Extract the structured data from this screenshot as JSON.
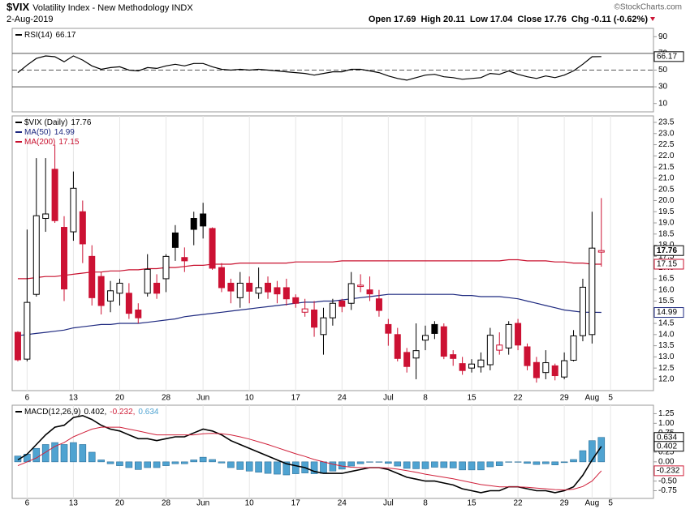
{
  "header": {
    "symbol": "$VIX",
    "name": "Volatility Index - New Methodology INDX",
    "copyright": "©StockCharts.com",
    "date": "2-Aug-2019",
    "quote": [
      {
        "label": "Open",
        "value": 17.69
      },
      {
        "label": "High",
        "value": 20.11
      },
      {
        "label": "Low",
        "value": 17.04
      },
      {
        "label": "Close",
        "value": 17.76
      },
      {
        "label": "Chg",
        "value": "-0.11 (-0.62%)"
      }
    ]
  },
  "chart_data": [
    {
      "type": "line",
      "xlim": [
        -0.61,
        68.63
      ],
      "ylim": [
        0,
        100
      ],
      "yticks": [
        10,
        30,
        50,
        70,
        90
      ],
      "reference_lines": [
        {
          "value": 70,
          "style": "solid"
        },
        {
          "value": 50,
          "style": "dashed"
        },
        {
          "value": 30,
          "style": "solid"
        }
      ],
      "series": [
        {
          "name": "RSI(14)",
          "color": "#000000",
          "last": 66.17,
          "values": [
            47,
            56,
            64,
            67,
            66,
            60,
            67,
            62,
            55,
            51,
            53,
            54,
            50,
            49,
            53,
            52,
            55,
            57,
            55,
            58,
            58,
            54,
            51,
            50,
            51,
            50,
            51,
            50,
            49,
            48,
            47,
            46,
            44,
            46,
            48,
            48,
            51,
            51,
            49,
            47,
            43,
            40,
            38,
            41,
            44,
            45,
            42,
            41,
            39,
            40,
            41,
            46,
            45,
            49,
            45,
            42,
            40,
            43,
            41,
            44,
            49,
            57,
            66,
            66.17
          ]
        }
      ]
    },
    {
      "type": "candlestick",
      "name": "$VIX (Daily)",
      "last": 17.76,
      "colors": {
        "up": "#000000",
        "down": "#cc1133"
      },
      "xlim": [
        -0.61,
        68.63
      ],
      "ylim": [
        11.49,
        23.79
      ],
      "yticks": [
        {
          "value": 12,
          "label": "12.0"
        },
        12.5,
        {
          "value": 13,
          "label": "13.0"
        },
        13.5,
        {
          "value": 14,
          "label": "14.0"
        },
        14.5,
        {
          "value": 15,
          "label": "15.0"
        },
        15.5,
        {
          "value": 16,
          "label": "16.0"
        },
        16.5,
        {
          "value": 17,
          "label": "17.0"
        },
        17.5,
        {
          "value": 18,
          "label": "18.0"
        },
        18.5,
        {
          "value": 19,
          "label": "19.0"
        },
        19.5,
        {
          "value": 20,
          "label": "20.0"
        },
        20.5,
        {
          "value": 21,
          "label": "21.0"
        },
        21.5,
        {
          "value": 22,
          "label": "22.0"
        },
        22.5,
        {
          "value": 23,
          "label": "23.0"
        },
        23.5
      ],
      "xticks": [
        {
          "value": 1,
          "label": "6"
        },
        {
          "value": 6,
          "label": "13"
        },
        {
          "value": 11,
          "label": "20"
        },
        {
          "value": 16,
          "label": "28"
        },
        {
          "value": 20,
          "label": "Jun"
        },
        {
          "value": 25,
          "label": "10"
        },
        {
          "value": 30,
          "label": "17"
        },
        {
          "value": 35,
          "label": "24"
        },
        {
          "value": 40,
          "label": "Jul"
        },
        {
          "value": 44,
          "label": "8"
        },
        {
          "value": 49,
          "label": "15"
        },
        {
          "value": 54,
          "label": "22"
        },
        {
          "value": 59,
          "label": "29"
        },
        {
          "value": 62,
          "label": "Aug"
        },
        {
          "value": 64,
          "label": "5"
        }
      ],
      "ohlc": {
        "open": [
          14.1,
          12.9,
          15.8,
          19.2,
          21.4,
          18.8,
          18.6,
          19.5,
          17.5,
          16.6,
          15.5,
          15.85,
          15.85,
          15.1,
          15.85,
          16.3,
          16.5,
          18.55,
          17.45,
          19.2,
          19.4,
          18.75,
          17.0,
          16.3,
          15.65,
          16.3,
          15.85,
          16.3,
          16.1,
          16.1,
          15.65,
          15.0,
          15.1,
          14.0,
          14.75,
          15.5,
          15.4,
          16.15,
          16.0,
          15.6,
          14.45,
          14.0,
          13.2,
          12.95,
          13.75,
          14.45,
          14.35,
          13.1,
          12.7,
          12.5,
          12.55,
          12.65,
          13.3,
          13.4,
          14.5,
          13.45,
          12.75,
          12.3,
          12.6,
          12.1,
          12.85,
          13.95,
          14.0,
          17.69
        ],
        "high": [
          14.15,
          18.7,
          21.9,
          21.9,
          22.5,
          19.3,
          21.3,
          20.0,
          18.0,
          16.8,
          16.4,
          16.5,
          16.3,
          15.4,
          17.6,
          16.7,
          17.6,
          18.9,
          17.9,
          19.5,
          19.9,
          18.8,
          17.2,
          16.5,
          16.8,
          16.6,
          17.0,
          16.6,
          16.4,
          16.5,
          15.8,
          15.6,
          15.5,
          15.2,
          15.6,
          15.6,
          16.8,
          16.7,
          16.6,
          16.0,
          14.7,
          14.3,
          13.4,
          14.5,
          14.4,
          14.6,
          14.5,
          13.3,
          13.0,
          12.9,
          13.2,
          14.3,
          14.1,
          14.6,
          14.7,
          13.6,
          13.0,
          13.3,
          12.7,
          13.2,
          14.2,
          16.5,
          19.5,
          20.11
        ],
        "low": [
          12.8,
          12.8,
          15.7,
          18.6,
          19.0,
          15.5,
          18.2,
          17.2,
          15.3,
          14.9,
          15.0,
          15.3,
          14.7,
          14.5,
          15.7,
          15.6,
          15.9,
          17.3,
          16.8,
          18.0,
          18.3,
          16.9,
          15.9,
          15.4,
          15.2,
          15.4,
          15.6,
          15.6,
          15.4,
          15.3,
          15.2,
          14.8,
          13.9,
          13.1,
          14.4,
          15.0,
          15.1,
          15.9,
          15.5,
          14.8,
          13.5,
          12.8,
          12.3,
          12.0,
          13.3,
          13.8,
          12.9,
          12.6,
          12.2,
          12.3,
          12.3,
          12.4,
          13.1,
          13.1,
          13.3,
          12.4,
          11.85,
          12.0,
          11.95,
          12.0,
          12.8,
          13.7,
          13.6,
          17.04
        ],
        "close": [
          12.87,
          15.44,
          19.32,
          19.4,
          19.1,
          16.04,
          20.55,
          18.06,
          15.65,
          15.3,
          15.96,
          16.3,
          14.95,
          14.75,
          16.92,
          15.85,
          17.5,
          17.9,
          17.3,
          18.71,
          18.86,
          16.97,
          16.1,
          15.95,
          16.3,
          15.94,
          16.1,
          15.91,
          15.82,
          15.6,
          15.4,
          15.15,
          14.33,
          14.75,
          15.4,
          15.26,
          16.28,
          16.21,
          15.82,
          15.08,
          14.06,
          12.93,
          12.57,
          13.28,
          13.96,
          14.05,
          13.03,
          12.93,
          12.39,
          12.68,
          12.86,
          13.97,
          13.53,
          14.45,
          13.53,
          12.61,
          12.07,
          12.74,
          12.16,
          12.83,
          13.94,
          16.12,
          17.87,
          17.76
        ]
      },
      "series": [
        {
          "name": "MA(50)",
          "color": "#1f2a80",
          "last": 14.99,
          "values": [
            13.95,
            14.0,
            14.05,
            14.1,
            14.15,
            14.2,
            14.3,
            14.35,
            14.4,
            14.45,
            14.45,
            14.5,
            14.5,
            14.5,
            14.55,
            14.6,
            14.65,
            14.7,
            14.8,
            14.85,
            14.9,
            14.95,
            15.0,
            15.05,
            15.1,
            15.15,
            15.2,
            15.25,
            15.3,
            15.35,
            15.4,
            15.45,
            15.45,
            15.5,
            15.5,
            15.55,
            15.6,
            15.65,
            15.7,
            15.75,
            15.8,
            15.8,
            15.8,
            15.8,
            15.8,
            15.8,
            15.8,
            15.8,
            15.75,
            15.75,
            15.7,
            15.7,
            15.7,
            15.65,
            15.6,
            15.5,
            15.4,
            15.3,
            15.2,
            15.1,
            15.05,
            15.0,
            15.0,
            14.99
          ]
        },
        {
          "name": "MA(200)",
          "color": "#c8102e",
          "last": 17.15,
          "values": [
            16.5,
            16.5,
            16.55,
            16.6,
            16.6,
            16.65,
            16.7,
            16.75,
            16.8,
            16.8,
            16.85,
            16.85,
            16.9,
            16.9,
            16.95,
            16.95,
            17.0,
            17.0,
            17.05,
            17.1,
            17.1,
            17.15,
            17.15,
            17.15,
            17.2,
            17.2,
            17.2,
            17.2,
            17.2,
            17.2,
            17.25,
            17.25,
            17.25,
            17.25,
            17.25,
            17.3,
            17.3,
            17.3,
            17.3,
            17.3,
            17.3,
            17.3,
            17.3,
            17.3,
            17.3,
            17.3,
            17.3,
            17.3,
            17.3,
            17.3,
            17.3,
            17.3,
            17.3,
            17.35,
            17.35,
            17.3,
            17.3,
            17.3,
            17.25,
            17.25,
            17.2,
            17.2,
            17.15,
            17.15
          ]
        }
      ]
    },
    {
      "type": "macd",
      "name": "MACD(12,26,9)",
      "xlim": [
        -0.61,
        68.63
      ],
      "ylim": [
        -0.95,
        1.47
      ],
      "yticks": [
        -0.75,
        {
          "value": -0.5,
          "label": "-0.50"
        },
        -0.25,
        {
          "value": 0,
          "label": "0.00"
        },
        0.25,
        {
          "value": 0.5,
          "label": "0.50"
        },
        0.75,
        {
          "value": 1,
          "label": "1.00"
        },
        1.25
      ],
      "xticks": [
        {
          "value": 1,
          "label": "6"
        },
        {
          "value": 6,
          "label": "13"
        },
        {
          "value": 11,
          "label": "20"
        },
        {
          "value": 16,
          "label": "28"
        },
        {
          "value": 20,
          "label": "Jun"
        },
        {
          "value": 25,
          "label": "10"
        },
        {
          "value": 30,
          "label": "17"
        },
        {
          "value": 35,
          "label": "24"
        },
        {
          "value": 40,
          "label": "Jul"
        },
        {
          "value": 44,
          "label": "8"
        },
        {
          "value": 49,
          "label": "15"
        },
        {
          "value": 54,
          "label": "22"
        },
        {
          "value": 59,
          "label": "29"
        },
        {
          "value": 62,
          "label": "Aug"
        },
        {
          "value": 64,
          "label": "5"
        }
      ],
      "lines": [
        {
          "color": "#000000",
          "last": 0.402,
          "legend_label": "0.402,",
          "values": [
            0.05,
            0.2,
            0.45,
            0.7,
            0.9,
            0.95,
            1.15,
            1.2,
            1.1,
            0.95,
            0.85,
            0.8,
            0.7,
            0.6,
            0.6,
            0.55,
            0.6,
            0.65,
            0.65,
            0.75,
            0.85,
            0.8,
            0.7,
            0.55,
            0.45,
            0.35,
            0.25,
            0.15,
            0.05,
            -0.05,
            -0.1,
            -0.15,
            -0.25,
            -0.3,
            -0.3,
            -0.3,
            -0.25,
            -0.2,
            -0.15,
            -0.15,
            -0.2,
            -0.3,
            -0.4,
            -0.45,
            -0.5,
            -0.5,
            -0.55,
            -0.6,
            -0.7,
            -0.75,
            -0.8,
            -0.75,
            -0.75,
            -0.65,
            -0.65,
            -0.7,
            -0.75,
            -0.75,
            -0.8,
            -0.75,
            -0.65,
            -0.35,
            0.05,
            0.402
          ]
        },
        {
          "color": "#d0203a",
          "last": -0.232,
          "legend_label": "-0.232,",
          "values": [
            -0.1,
            0.0,
            0.1,
            0.25,
            0.4,
            0.5,
            0.65,
            0.75,
            0.85,
            0.9,
            0.9,
            0.9,
            0.85,
            0.8,
            0.75,
            0.7,
            0.7,
            0.7,
            0.7,
            0.7,
            0.73,
            0.74,
            0.73,
            0.7,
            0.65,
            0.59,
            0.52,
            0.45,
            0.37,
            0.29,
            0.21,
            0.14,
            0.06,
            0.0,
            -0.06,
            -0.11,
            -0.14,
            -0.15,
            -0.15,
            -0.15,
            -0.16,
            -0.19,
            -0.23,
            -0.27,
            -0.32,
            -0.36,
            -0.4,
            -0.44,
            -0.49,
            -0.54,
            -0.59,
            -0.62,
            -0.65,
            -0.65,
            -0.65,
            -0.66,
            -0.68,
            -0.7,
            -0.72,
            -0.73,
            -0.71,
            -0.64,
            -0.5,
            -0.232
          ]
        }
      ],
      "histogram": {
        "color": "#4fa3d1",
        "last": 0.634,
        "legend_label": "0.634",
        "values": [
          0.15,
          0.2,
          0.35,
          0.45,
          0.5,
          0.45,
          0.5,
          0.45,
          0.25,
          0.05,
          -0.05,
          -0.1,
          -0.15,
          -0.2,
          -0.15,
          -0.15,
          -0.1,
          -0.05,
          -0.05,
          0.05,
          0.12,
          0.06,
          -0.03,
          -0.15,
          -0.2,
          -0.24,
          -0.27,
          -0.3,
          -0.32,
          -0.34,
          -0.31,
          -0.29,
          -0.31,
          -0.3,
          -0.24,
          -0.19,
          -0.11,
          -0.05,
          0.0,
          0.0,
          -0.04,
          -0.11,
          -0.17,
          -0.18,
          -0.18,
          -0.14,
          -0.15,
          -0.16,
          -0.21,
          -0.21,
          -0.21,
          -0.13,
          -0.1,
          0.0,
          0.0,
          -0.04,
          -0.07,
          -0.05,
          -0.08,
          -0.02,
          0.06,
          0.29,
          0.55,
          0.634
        ]
      }
    }
  ]
}
